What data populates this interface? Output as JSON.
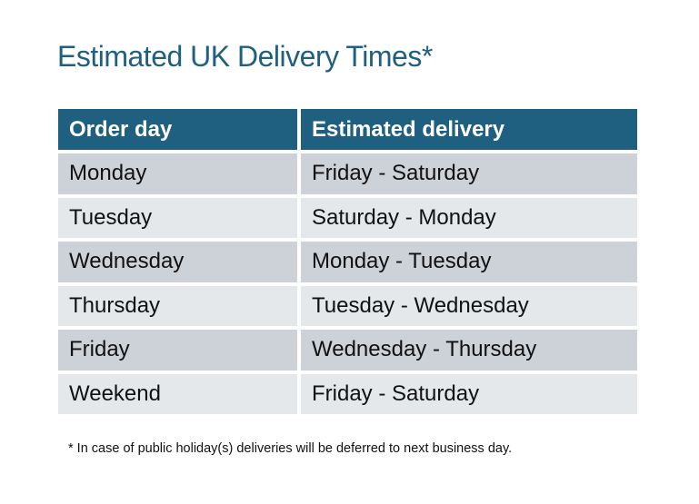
{
  "title": "Estimated UK Delivery Times*",
  "table": {
    "headers": [
      "Order day",
      "Estimated delivery"
    ],
    "rows": [
      [
        "Monday",
        "Friday - Saturday"
      ],
      [
        "Tuesday",
        "Saturday - Monday"
      ],
      [
        "Wednesday",
        "Monday - Tuesday"
      ],
      [
        "Thursday",
        "Tuesday - Wednesday"
      ],
      [
        "Friday",
        "Wednesday - Thursday"
      ],
      [
        "Weekend",
        "Friday - Saturday"
      ]
    ]
  },
  "footnote": "* In case of public holiday(s) deliveries will be deferred to next business day.",
  "colors": {
    "header": "#1f5f80",
    "row_dark": "#cdd1d8",
    "row_light": "#e5e8eb",
    "title": "#1f5f80"
  }
}
